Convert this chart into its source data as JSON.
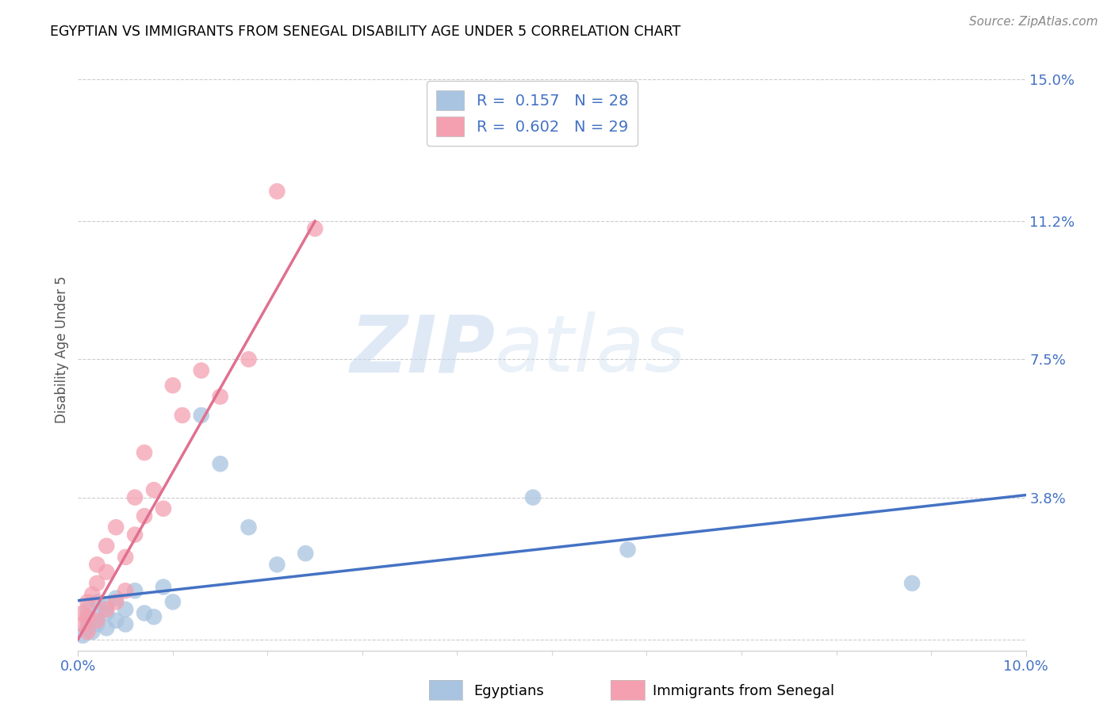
{
  "title": "EGYPTIAN VS IMMIGRANTS FROM SENEGAL DISABILITY AGE UNDER 5 CORRELATION CHART",
  "source": "Source: ZipAtlas.com",
  "ylabel": "Disability Age Under 5",
  "xlim": [
    0,
    0.1
  ],
  "ylim": [
    -0.003,
    0.158
  ],
  "yticks": [
    0.0,
    0.038,
    0.075,
    0.112,
    0.15
  ],
  "ytick_labels": [
    "",
    "3.8%",
    "7.5%",
    "11.2%",
    "15.0%"
  ],
  "xticks": [
    0.0,
    0.1
  ],
  "xtick_labels": [
    "0.0%",
    "10.0%"
  ],
  "r_egyptian": 0.157,
  "n_egyptian": 28,
  "r_senegal": 0.602,
  "n_senegal": 29,
  "egyptian_color": "#a8c4e0",
  "senegal_color": "#f4a0b0",
  "egyptian_line_color": "#4472c4",
  "senegal_line_color": "#e07090",
  "watermark_zip": "ZIP",
  "watermark_atlas": "atlas",
  "legend_label_egyptian": "Egyptians",
  "legend_label_senegal": "Immigrants from Senegal",
  "egyptian_x": [
    0.0005,
    0.001,
    0.001,
    0.001,
    0.0015,
    0.002,
    0.002,
    0.002,
    0.003,
    0.003,
    0.003,
    0.004,
    0.004,
    0.005,
    0.005,
    0.006,
    0.007,
    0.008,
    0.009,
    0.01,
    0.013,
    0.015,
    0.018,
    0.021,
    0.024,
    0.048,
    0.058,
    0.088
  ],
  "egyptian_y": [
    0.001,
    0.003,
    0.005,
    0.008,
    0.002,
    0.004,
    0.006,
    0.01,
    0.003,
    0.007,
    0.009,
    0.005,
    0.011,
    0.004,
    0.008,
    0.013,
    0.007,
    0.006,
    0.014,
    0.01,
    0.06,
    0.047,
    0.03,
    0.02,
    0.023,
    0.038,
    0.024,
    0.015
  ],
  "senegal_x": [
    0.0005,
    0.0005,
    0.001,
    0.001,
    0.001,
    0.0015,
    0.002,
    0.002,
    0.002,
    0.003,
    0.003,
    0.003,
    0.004,
    0.004,
    0.005,
    0.005,
    0.006,
    0.006,
    0.007,
    0.007,
    0.008,
    0.009,
    0.01,
    0.011,
    0.013,
    0.015,
    0.018,
    0.021,
    0.025
  ],
  "senegal_y": [
    0.004,
    0.007,
    0.002,
    0.006,
    0.01,
    0.012,
    0.005,
    0.015,
    0.02,
    0.008,
    0.018,
    0.025,
    0.01,
    0.03,
    0.013,
    0.022,
    0.028,
    0.038,
    0.033,
    0.05,
    0.04,
    0.035,
    0.068,
    0.06,
    0.072,
    0.065,
    0.075,
    0.12,
    0.11
  ],
  "senegal_line_x": [
    0.0,
    0.025
  ],
  "senegal_line_y": [
    0.0,
    0.112
  ]
}
